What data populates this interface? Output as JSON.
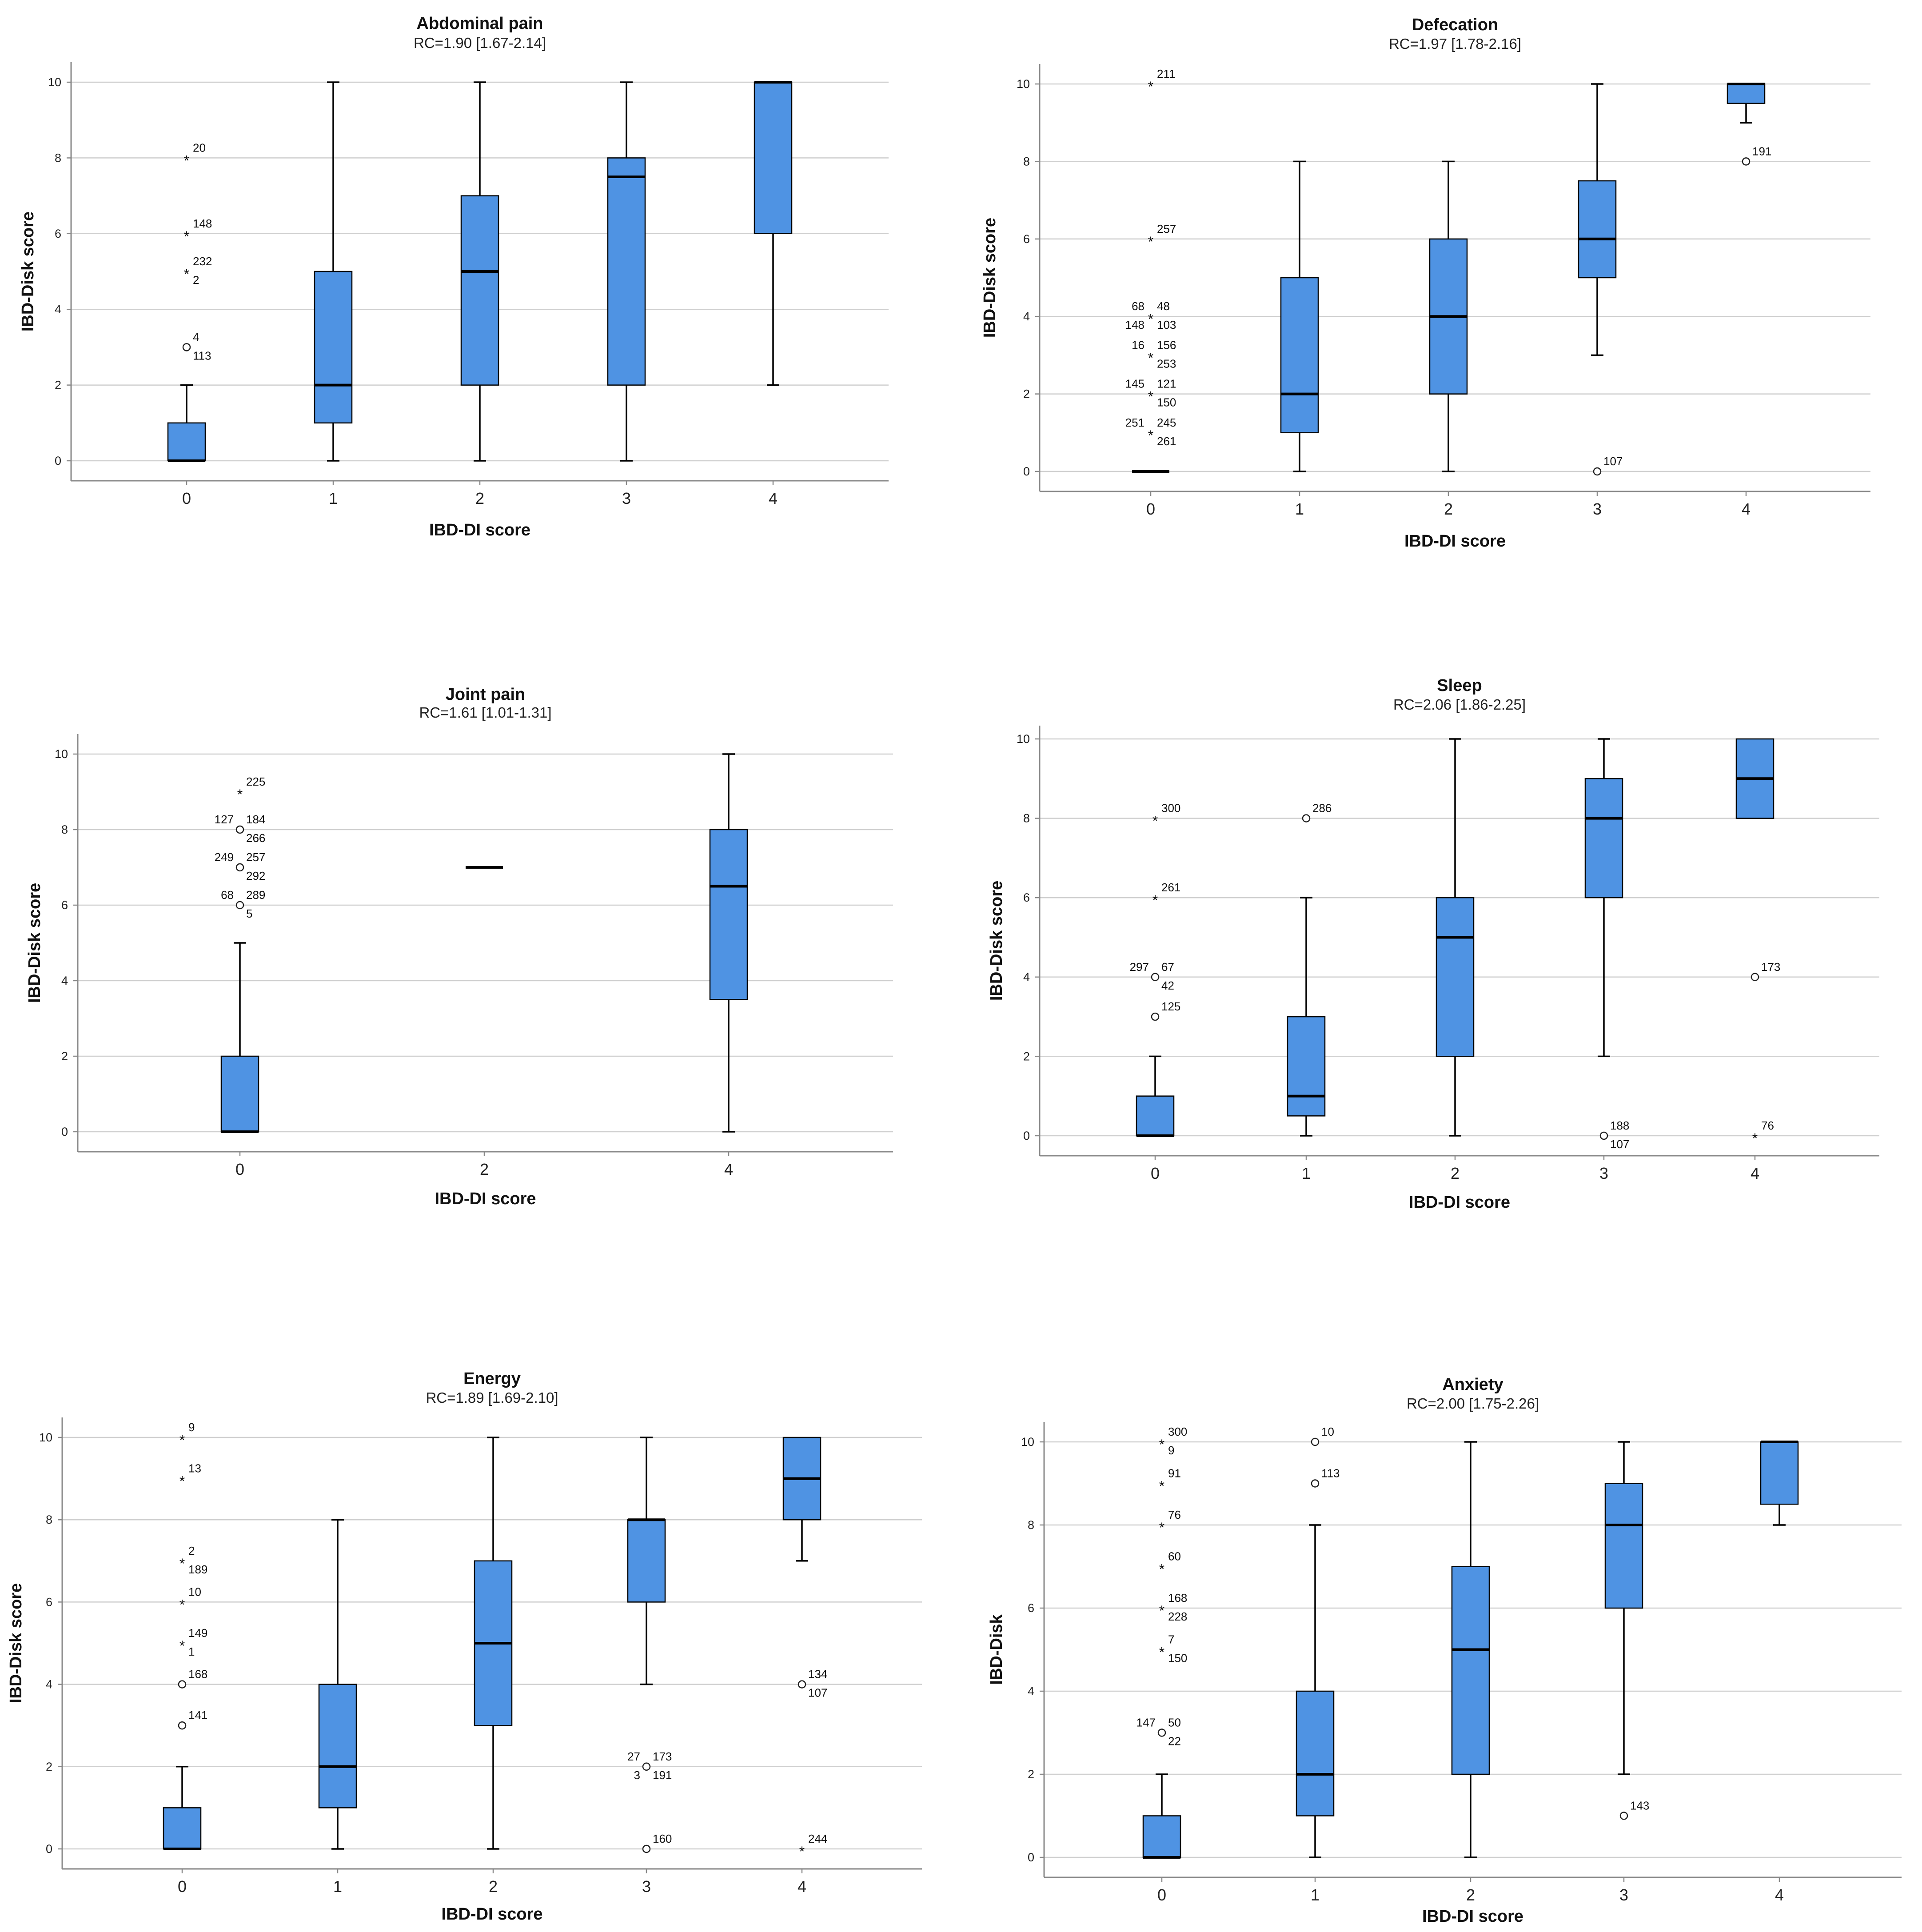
{
  "colors": {
    "box_fill": "#4f93e3",
    "box_stroke": "#000000",
    "grid": "#cfcfcf",
    "axis": "#888888"
  },
  "chart_data": [
    {
      "type": "boxplot",
      "title": "Abdominal pain",
      "subtitle": "RC=1.90 [1.67-2.14]",
      "xlabel": "IBD-DI score",
      "ylabel": "IBD-Disk score",
      "ylim": [
        0,
        10
      ],
      "yticks": [
        "0",
        "2",
        "4",
        "6",
        "8",
        "10"
      ],
      "categories": [
        "0",
        "1",
        "2",
        "3",
        "4"
      ],
      "boxes": [
        {
          "category": "0",
          "min": 0,
          "q1": 0,
          "median": 0,
          "q3": 1,
          "max": 2,
          "outliers": [
            {
              "value": 8,
              "marker": "*",
              "labels": [
                "20"
              ]
            },
            {
              "value": 6,
              "marker": "*",
              "labels": [
                "148"
              ]
            },
            {
              "value": 5,
              "marker": "*",
              "labels": [
                "232",
                "2"
              ]
            },
            {
              "value": 3,
              "marker": "o",
              "labels": [
                "4",
                "113"
              ]
            }
          ]
        },
        {
          "category": "1",
          "min": 0,
          "q1": 1,
          "median": 2,
          "q3": 5,
          "max": 10,
          "outliers": []
        },
        {
          "category": "2",
          "min": 0,
          "q1": 2,
          "median": 5,
          "q3": 7,
          "max": 10,
          "outliers": []
        },
        {
          "category": "3",
          "min": 0,
          "q1": 2,
          "median": 7.5,
          "q3": 8,
          "max": 10,
          "outliers": []
        },
        {
          "category": "4",
          "min": 2,
          "q1": 6,
          "median": 10,
          "q3": 10,
          "max": 10,
          "outliers": []
        }
      ]
    },
    {
      "type": "boxplot",
      "title": "Defecation",
      "subtitle": "RC=1.97 [1.78-2.16]",
      "xlabel": "IBD-DI score",
      "ylabel": "IBD-Disk score",
      "ylim": [
        0,
        10
      ],
      "yticks": [
        "0",
        "2",
        "4",
        "6",
        "8",
        "10"
      ],
      "categories": [
        "0",
        "1",
        "2",
        "3",
        "4"
      ],
      "boxes": [
        {
          "category": "0",
          "min": 0,
          "q1": 0,
          "median": 0,
          "q3": 0,
          "max": 0,
          "outliers": [
            {
              "value": 10,
              "marker": "*",
              "labels": [
                "211"
              ]
            },
            {
              "value": 6,
              "marker": "*",
              "labels": [
                "257"
              ]
            },
            {
              "value": 4,
              "marker": "*",
              "labels": [
                "48",
                "103",
                "68",
                "148"
              ]
            },
            {
              "value": 3,
              "marker": "*",
              "labels": [
                "156",
                "253",
                "16"
              ]
            },
            {
              "value": 2,
              "marker": "*",
              "labels": [
                "121",
                "150",
                "145"
              ]
            },
            {
              "value": 1,
              "marker": "*",
              "labels": [
                "245",
                "261",
                "251"
              ]
            }
          ]
        },
        {
          "category": "1",
          "min": 0,
          "q1": 1,
          "median": 2,
          "q3": 5,
          "max": 8,
          "outliers": []
        },
        {
          "category": "2",
          "min": 0,
          "q1": 2,
          "median": 4,
          "q3": 6,
          "max": 8,
          "outliers": []
        },
        {
          "category": "3",
          "min": 3,
          "q1": 5,
          "median": 6,
          "q3": 7.5,
          "max": 10,
          "outliers": [
            {
              "value": 0,
              "marker": "o",
              "labels": [
                "107"
              ]
            }
          ]
        },
        {
          "category": "4",
          "min": 9,
          "q1": 9.5,
          "median": 10,
          "q3": 10,
          "max": 10,
          "outliers": [
            {
              "value": 8,
              "marker": "o",
              "labels": [
                "191"
              ]
            }
          ]
        }
      ]
    },
    {
      "type": "boxplot",
      "title": "Joint pain",
      "subtitle": "RC=1.61 [1.01-1.31]",
      "xlabel": "IBD-DI score",
      "ylabel": "IBD-Disk score",
      "ylim": [
        0,
        10
      ],
      "yticks": [
        "0",
        "2",
        "4",
        "6",
        "8",
        "10"
      ],
      "categories": [
        "0",
        "2",
        "4"
      ],
      "boxes": [
        {
          "category": "0",
          "min": 0,
          "q1": 0,
          "median": 0,
          "q3": 2,
          "max": 5,
          "outliers": [
            {
              "value": 9,
              "marker": "*",
              "labels": [
                "225"
              ]
            },
            {
              "value": 8,
              "marker": "o",
              "labels": [
                "184",
                "266",
                "127"
              ]
            },
            {
              "value": 7,
              "marker": "o",
              "labels": [
                "257",
                "292",
                "249"
              ]
            },
            {
              "value": 6,
              "marker": "o",
              "labels": [
                "289",
                "5",
                "68"
              ]
            }
          ]
        },
        {
          "category": "2",
          "min": 7,
          "q1": 7,
          "median": 7,
          "q3": 7,
          "max": 7,
          "outliers": []
        },
        {
          "category": "4",
          "min": 0,
          "q1": 3.5,
          "median": 6.5,
          "q3": 8,
          "max": 10,
          "outliers": []
        }
      ]
    },
    {
      "type": "boxplot",
      "title": "Sleep",
      "subtitle": "RC=2.06 [1.86-2.25]",
      "xlabel": "IBD-DI score",
      "ylabel": "IBD-Disk score",
      "ylim": [
        0,
        10
      ],
      "yticks": [
        "0",
        "2",
        "4",
        "6",
        "8",
        "10"
      ],
      "categories": [
        "0",
        "1",
        "2",
        "3",
        "4"
      ],
      "boxes": [
        {
          "category": "0",
          "min": 0,
          "q1": 0,
          "median": 0,
          "q3": 1,
          "max": 2,
          "outliers": [
            {
              "value": 8,
              "marker": "*",
              "labels": [
                "300"
              ]
            },
            {
              "value": 6,
              "marker": "*",
              "labels": [
                "261"
              ]
            },
            {
              "value": 4,
              "marker": "o",
              "labels": [
                "67",
                "42",
                "297"
              ]
            },
            {
              "value": 3,
              "marker": "o",
              "labels": [
                "125"
              ]
            }
          ]
        },
        {
          "category": "1",
          "min": 0,
          "q1": 0.5,
          "median": 1,
          "q3": 3,
          "max": 6,
          "outliers": [
            {
              "value": 8,
              "marker": "o",
              "labels": [
                "286"
              ]
            }
          ]
        },
        {
          "category": "2",
          "min": 0,
          "q1": 2,
          "median": 5,
          "q3": 6,
          "max": 10,
          "outliers": []
        },
        {
          "category": "3",
          "min": 2,
          "q1": 6,
          "median": 8,
          "q3": 9,
          "max": 10,
          "outliers": [
            {
              "value": 0,
              "marker": "o",
              "labels": [
                "188",
                "107"
              ]
            }
          ]
        },
        {
          "category": "4",
          "min": 8,
          "q1": 8,
          "median": 9,
          "q3": 10,
          "max": 10,
          "outliers": [
            {
              "value": 4,
              "marker": "o",
              "labels": [
                "173"
              ]
            },
            {
              "value": 0,
              "marker": "*",
              "labels": [
                "76"
              ]
            }
          ]
        }
      ]
    },
    {
      "type": "boxplot",
      "title": "Energy",
      "subtitle": "RC=1.89 [1.69-2.10]",
      "xlabel": "IBD-DI score",
      "ylabel": "IBD-Disk score",
      "ylim": [
        0,
        10
      ],
      "yticks": [
        "0",
        "2",
        "4",
        "6",
        "8",
        "10"
      ],
      "categories": [
        "0",
        "1",
        "2",
        "3",
        "4"
      ],
      "boxes": [
        {
          "category": "0",
          "min": 0,
          "q1": 0,
          "median": 0,
          "q3": 1,
          "max": 2,
          "outliers": [
            {
              "value": 10,
              "marker": "*",
              "labels": [
                "9"
              ]
            },
            {
              "value": 9,
              "marker": "*",
              "labels": [
                "13"
              ]
            },
            {
              "value": 7,
              "marker": "*",
              "labels": [
                "2",
                "189"
              ]
            },
            {
              "value": 6,
              "marker": "*",
              "labels": [
                "10"
              ]
            },
            {
              "value": 5,
              "marker": "*",
              "labels": [
                "149",
                "1"
              ]
            },
            {
              "value": 4,
              "marker": "o",
              "labels": [
                "168"
              ]
            },
            {
              "value": 3,
              "marker": "o",
              "labels": [
                "141"
              ]
            }
          ]
        },
        {
          "category": "1",
          "min": 0,
          "q1": 1,
          "median": 2,
          "q3": 4,
          "max": 8,
          "outliers": []
        },
        {
          "category": "2",
          "min": 0,
          "q1": 3,
          "median": 5,
          "q3": 7,
          "max": 10,
          "outliers": []
        },
        {
          "category": "3",
          "min": 4,
          "q1": 6,
          "median": 8,
          "q3": 8,
          "max": 10,
          "outliers": [
            {
              "value": 2,
              "marker": "o",
              "labels": [
                "173",
                "191",
                "27",
                "3"
              ]
            },
            {
              "value": 0,
              "marker": "o",
              "labels": [
                "160"
              ]
            }
          ]
        },
        {
          "category": "4",
          "min": 7,
          "q1": 8,
          "median": 9,
          "q3": 10,
          "max": 10,
          "outliers": [
            {
              "value": 4,
              "marker": "o",
              "labels": [
                "134",
                "107"
              ]
            },
            {
              "value": 0,
              "marker": "*",
              "labels": [
                "244"
              ]
            }
          ]
        }
      ]
    },
    {
      "type": "boxplot",
      "title": "Anxiety",
      "subtitle": "RC=2.00 [1.75-2.26]",
      "xlabel": "IBD-DI score",
      "ylabel": "IBD-Disk",
      "ylim": [
        0,
        10
      ],
      "yticks": [
        "0",
        "2",
        "4",
        "6",
        "8",
        "10"
      ],
      "categories": [
        "0",
        "1",
        "2",
        "3",
        "4"
      ],
      "boxes": [
        {
          "category": "0",
          "min": 0,
          "q1": 0,
          "median": 0,
          "q3": 1,
          "max": 2,
          "outliers": [
            {
              "value": 10,
              "marker": "*",
              "labels": [
                "300",
                "9"
              ]
            },
            {
              "value": 9,
              "marker": "*",
              "labels": [
                "91"
              ]
            },
            {
              "value": 8,
              "marker": "*",
              "labels": [
                "76"
              ]
            },
            {
              "value": 7,
              "marker": "*",
              "labels": [
                "60"
              ]
            },
            {
              "value": 6,
              "marker": "*",
              "labels": [
                "168",
                "228"
              ]
            },
            {
              "value": 5,
              "marker": "*",
              "labels": [
                "7",
                "150"
              ]
            },
            {
              "value": 3,
              "marker": "o",
              "labels": [
                "50",
                "22",
                "147"
              ]
            }
          ]
        },
        {
          "category": "1",
          "min": 0,
          "q1": 1,
          "median": 2,
          "q3": 4,
          "max": 8,
          "outliers": [
            {
              "value": 10,
              "marker": "o",
              "labels": [
                "10"
              ]
            },
            {
              "value": 9,
              "marker": "o",
              "labels": [
                "113"
              ]
            }
          ]
        },
        {
          "category": "2",
          "min": 0,
          "q1": 2,
          "median": 5,
          "q3": 7,
          "max": 10,
          "outliers": []
        },
        {
          "category": "3",
          "min": 2,
          "q1": 6,
          "median": 8,
          "q3": 9,
          "max": 10,
          "outliers": [
            {
              "value": 1,
              "marker": "o",
              "labels": [
                "143"
              ]
            }
          ]
        },
        {
          "category": "4",
          "min": 8,
          "q1": 8.5,
          "median": 10,
          "q3": 10,
          "max": 10,
          "outliers": []
        }
      ]
    }
  ]
}
